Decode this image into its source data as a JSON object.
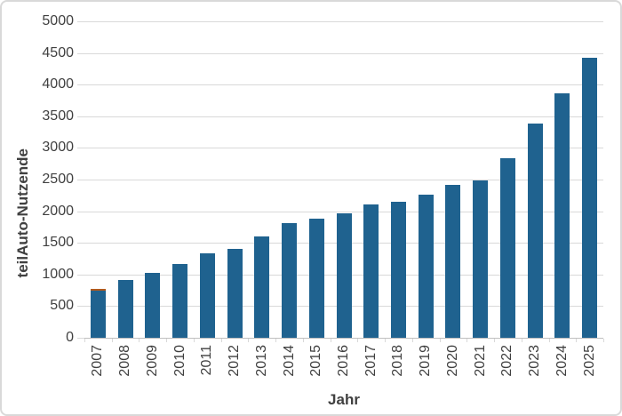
{
  "chart_data": {
    "type": "bar",
    "title": "",
    "xlabel": "Jahr",
    "ylabel": "teilAuto-Nutzende",
    "categories": [
      "2007",
      "2008",
      "2009",
      "2010",
      "2011",
      "2012",
      "2013",
      "2014",
      "2015",
      "2016",
      "2017",
      "2018",
      "2019",
      "2020",
      "2021",
      "2022",
      "2023",
      "2024",
      "2025"
    ],
    "values": [
      770,
      910,
      1025,
      1165,
      1330,
      1410,
      1600,
      1805,
      1880,
      1960,
      2100,
      2150,
      2265,
      2415,
      2485,
      2835,
      3380,
      3865,
      4430
    ],
    "ylim": [
      0,
      5000
    ],
    "ytick_step": 500,
    "yticks": [
      "0",
      "500",
      "1000",
      "1500",
      "2000",
      "2500",
      "3000",
      "3500",
      "4000",
      "4500",
      "5000"
    ],
    "grid": true,
    "legend": "none",
    "x_tick_rotation_deg": 90,
    "colors": {
      "bar": "#1f628f",
      "first_bar_cap": "#b05a1e",
      "gridline": "#d9d9d9",
      "axis_line": "#bfbfbf",
      "text": "#404040",
      "frame_border": "#d9d9d9",
      "background": "#ffffff"
    }
  }
}
